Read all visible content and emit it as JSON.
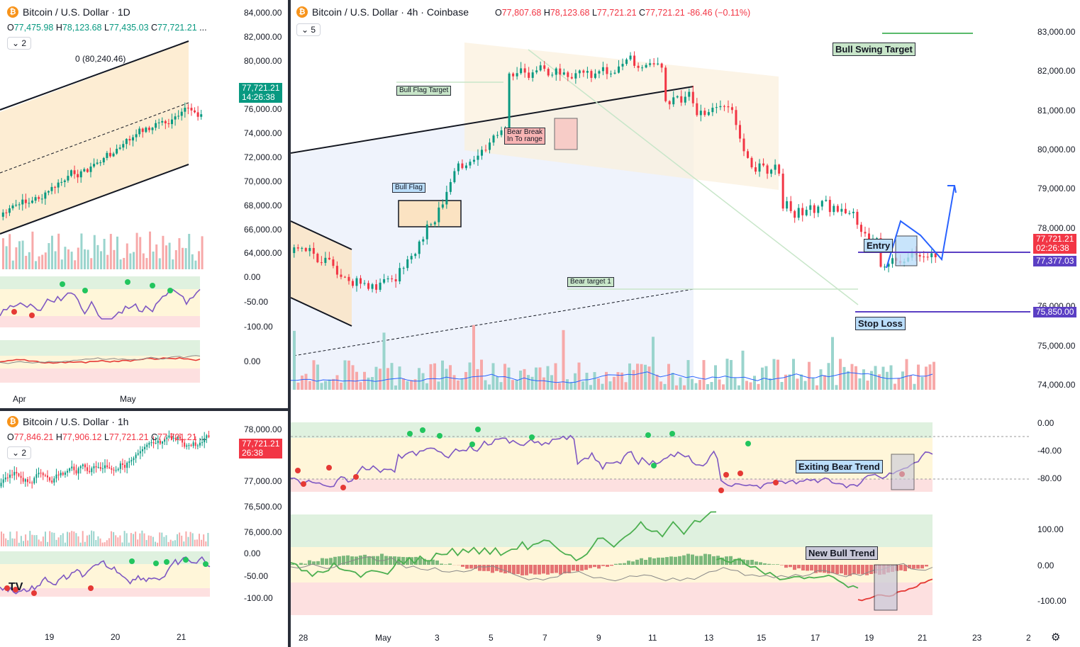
{
  "left_top": {
    "title": "Bitcoin / U.S. Dollar · 1D",
    "ohlc": {
      "o": "77,475.98",
      "h": "78,123.68",
      "l": "77,435.03",
      "c": "77,721.21",
      "more": "..."
    },
    "chip": "2",
    "fib_label": "0 (80,240.46)",
    "price_axis": [
      "84,000.00",
      "82,000.00",
      "80,000.00",
      "76,000.00",
      "74,000.00",
      "72,000.00",
      "70,000.00",
      "68,000.00",
      "66,000.00",
      "64,000.00"
    ],
    "price_tag": {
      "price": "77,721.21",
      "timer": "14:26:38",
      "color": "#089981"
    },
    "rsi_axis": [
      "0.00",
      "-50.00",
      "-100.00"
    ],
    "macd_axis": [
      "0.00"
    ],
    "time_axis": [
      "Apr",
      "May"
    ]
  },
  "left_bottom": {
    "title": "Bitcoin / U.S. Dollar · 1h",
    "ohlc": {
      "o": "77,846.21",
      "h": "77,906.12",
      "l": "77,721.21",
      "c": "77,721.21",
      "more": "..."
    },
    "chip": "2",
    "price_axis": [
      "78,000.00",
      "77,000.00",
      "76,500.00",
      "76,000.00"
    ],
    "price_tag": {
      "price": "77,721.21",
      "timer": "26:38",
      "color": "#f23645"
    },
    "rsi_axis": [
      "0.00",
      "-50.00",
      "-100.00"
    ],
    "time_axis": [
      "19",
      "20",
      "21"
    ],
    "logo": "TV"
  },
  "main": {
    "title": "Bitcoin / U.S. Dollar · 4h · Coinbase",
    "ohlc": {
      "o": "77,807.68",
      "h": "78,123.68",
      "l": "77,721.21",
      "c": "77,721.21",
      "chg": "-86.46 (−0.11%)"
    },
    "chip": "5",
    "price_axis": [
      "83,000.00",
      "82,000.00",
      "81,000.00",
      "80,000.00",
      "79,000.00",
      "78,000.00",
      "76,000.00",
      "75,000.00",
      "74,000.00"
    ],
    "price_tag": {
      "price": "77,721.21",
      "timer": "02:26:38",
      "color": "#f23645"
    },
    "entry_tag": {
      "price": "77,377.03",
      "color": "#5b3fc4"
    },
    "stop_tag": {
      "price": "75,850.00",
      "color": "#5b3fc4"
    },
    "annotations": {
      "bull_swing_target": "Bull Swing Target",
      "bull_flag_target": "Bull Flag Target",
      "bear_break": "Bear Break\nIn To range",
      "bull_flag": "Bull Flag",
      "bear_target": "Bear target 1",
      "entry": "Entry",
      "stop_loss": "Stop Loss",
      "exiting_bear": "Exiting Bear Trend",
      "new_bull": "New Bull Trend"
    },
    "rsi_axis": [
      "0.00",
      "-40.00",
      "-80.00"
    ],
    "macd_axis": [
      "100.00",
      "0.00",
      "-100.00"
    ],
    "time_axis": [
      "28",
      "May",
      "3",
      "5",
      "7",
      "9",
      "11",
      "13",
      "15",
      "17",
      "19",
      "21",
      "23",
      "2"
    ],
    "settings_icon": "gear-icon"
  },
  "colors": {
    "up": "#089981",
    "down": "#f23645",
    "accent": "#2962ff",
    "purple": "#7e57c2"
  }
}
